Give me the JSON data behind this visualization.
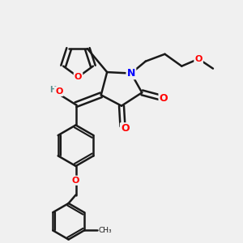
{
  "bg_color": "#f0f0f0",
  "bond_color": "#1a1a1a",
  "bond_width": 1.8,
  "atom_colors": {
    "O": "#ff0000",
    "N": "#0000ff",
    "C": "#1a1a1a",
    "H": "#5a9090"
  },
  "font_size_atom": 9,
  "font_size_small": 7
}
